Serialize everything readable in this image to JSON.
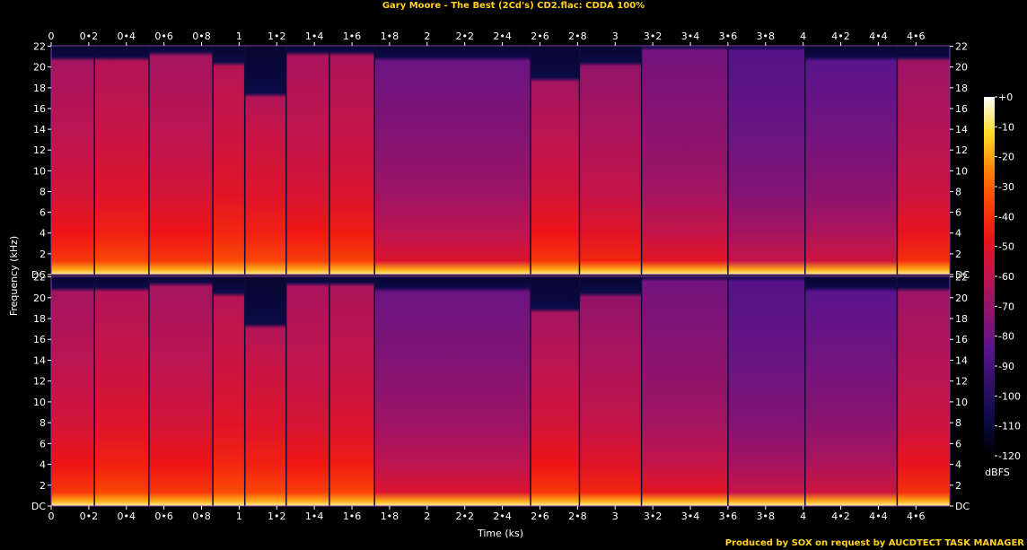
{
  "title": "Gary Moore - The Best (2Cd's) CD2.flac: CDDA 100%",
  "footer": "Produced by SOX on request by AUCDTECT TASK MANAGER",
  "chart_data": {
    "type": "heatmap",
    "subtype": "spectrogram",
    "channels": 2,
    "xlabel": "Time (ks)",
    "ylabel": "Frequency (kHz)",
    "xlim": [
      0,
      4.78
    ],
    "ylim": [
      0,
      22.05
    ],
    "x_ticks": [
      "0",
      "0•2",
      "0•4",
      "0•6",
      "0•8",
      "1",
      "1•2",
      "1•4",
      "1•6",
      "1•8",
      "2",
      "2•2",
      "2•4",
      "2•6",
      "2•8",
      "3",
      "3•2",
      "3•4",
      "3•6",
      "3•8",
      "4",
      "4•2",
      "4•4",
      "4•6"
    ],
    "x_tick_values": [
      0,
      0.2,
      0.4,
      0.6,
      0.8,
      1.0,
      1.2,
      1.4,
      1.6,
      1.8,
      2.0,
      2.2,
      2.4,
      2.6,
      2.8,
      3.0,
      3.2,
      3.4,
      3.6,
      3.8,
      4.0,
      4.2,
      4.4,
      4.6
    ],
    "y_ticks": [
      "DC",
      "2",
      "4",
      "6",
      "8",
      "10",
      "12",
      "14",
      "16",
      "18",
      "20",
      "22"
    ],
    "y_tick_values": [
      0,
      2,
      4,
      6,
      8,
      10,
      12,
      14,
      16,
      18,
      20,
      22
    ],
    "colorbar": {
      "label": "dBFS",
      "ticks": [
        "+0",
        "-10",
        "-20",
        "-30",
        "-40",
        "-50",
        "-60",
        "-70",
        "-80",
        "-90",
        "-100",
        "-110",
        "-120"
      ],
      "tick_values": [
        0,
        -10,
        -20,
        -30,
        -40,
        -50,
        -60,
        -70,
        -80,
        -90,
        -100,
        -110,
        -120
      ],
      "range": [
        -120,
        0
      ]
    },
    "track_boundaries_ks": [
      0.23,
      0.52,
      0.86,
      1.03,
      1.25,
      1.48,
      1.72,
      2.55,
      2.81,
      3.14,
      3.6,
      4.01,
      4.5
    ],
    "tracks": [
      {
        "start": 0.0,
        "end": 0.23,
        "cutoff_khz": 21.0,
        "level_db": -58
      },
      {
        "start": 0.23,
        "end": 0.52,
        "cutoff_khz": 21.0,
        "level_db": -55
      },
      {
        "start": 0.52,
        "end": 0.86,
        "cutoff_khz": 21.5,
        "level_db": -58
      },
      {
        "start": 0.86,
        "end": 1.03,
        "cutoff_khz": 20.5,
        "level_db": -54
      },
      {
        "start": 1.03,
        "end": 1.25,
        "cutoff_khz": 17.5,
        "level_db": -55
      },
      {
        "start": 1.25,
        "end": 1.48,
        "cutoff_khz": 21.5,
        "level_db": -57
      },
      {
        "start": 1.48,
        "end": 1.72,
        "cutoff_khz": 21.5,
        "level_db": -56
      },
      {
        "start": 1.72,
        "end": 2.55,
        "cutoff_khz": 21.0,
        "level_db": -72
      },
      {
        "start": 2.55,
        "end": 2.81,
        "cutoff_khz": 19.0,
        "level_db": -58
      },
      {
        "start": 2.81,
        "end": 3.14,
        "cutoff_khz": 20.5,
        "level_db": -62
      },
      {
        "start": 3.14,
        "end": 3.6,
        "cutoff_khz": 22.0,
        "level_db": -70
      },
      {
        "start": 3.6,
        "end": 4.01,
        "cutoff_khz": 22.0,
        "level_db": -78
      },
      {
        "start": 4.01,
        "end": 4.5,
        "cutoff_khz": 21.0,
        "level_db": -76
      },
      {
        "start": 4.5,
        "end": 4.78,
        "cutoff_khz": 21.0,
        "level_db": -60
      }
    ],
    "grid": false
  }
}
